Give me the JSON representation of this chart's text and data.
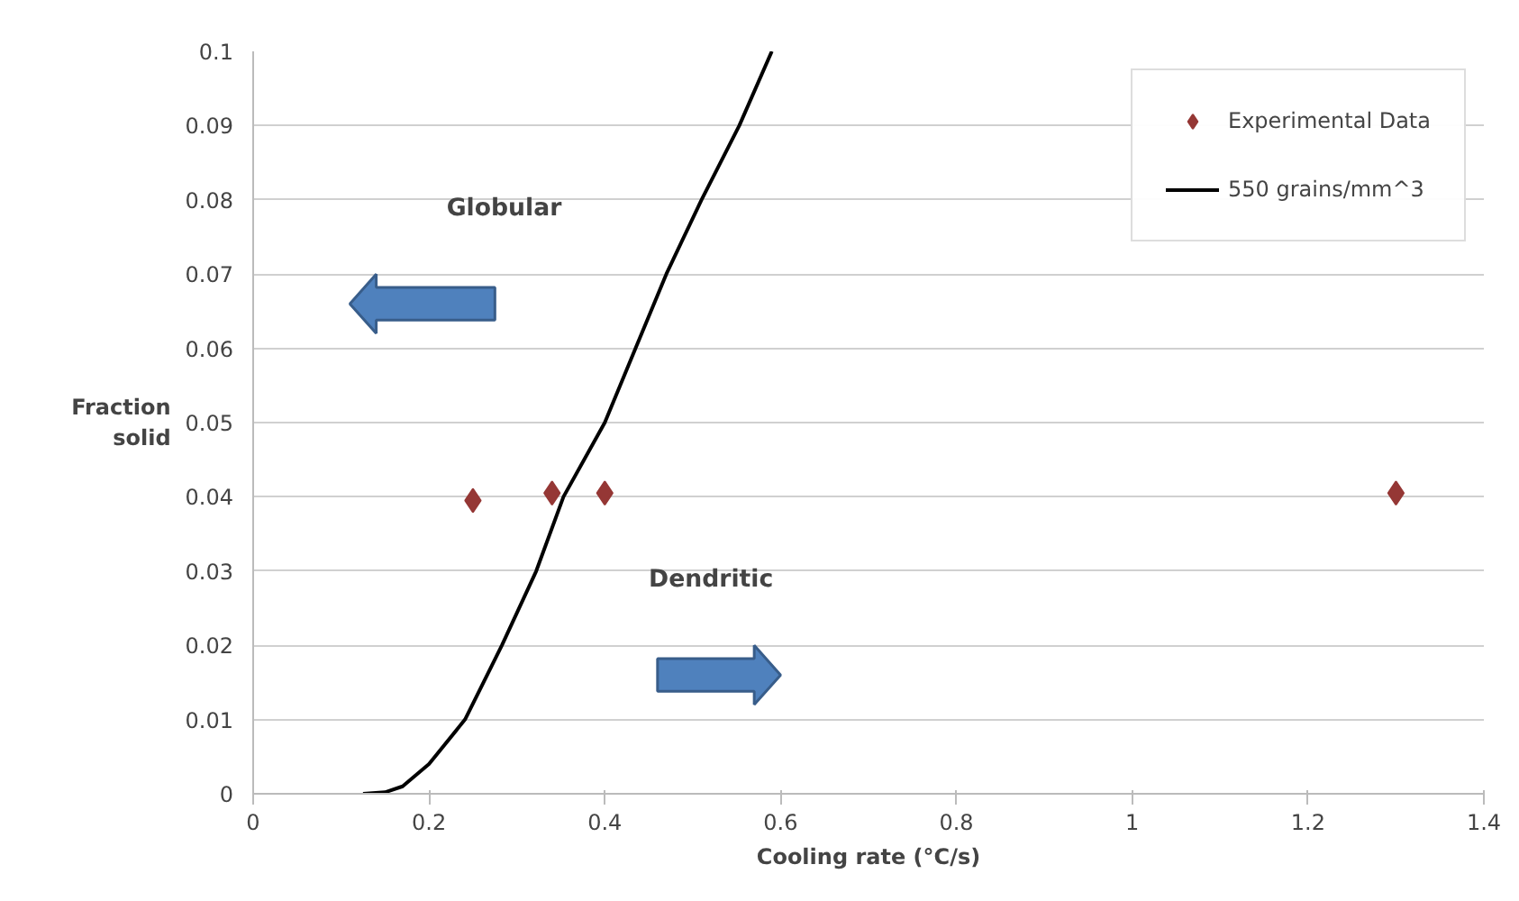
{
  "chart_data": {
    "type": "scatter",
    "xlabel": "Cooling rate (°C/s)",
    "ylabel": "Fraction\nsolid",
    "annotations": [
      "Globular",
      "Dendritic"
    ],
    "xlim": [
      0,
      1.4
    ],
    "xticks": [
      0,
      0.2,
      0.4,
      0.6,
      0.8,
      1,
      1.2,
      1.4
    ],
    "ylim": [
      0,
      0.1
    ],
    "yticks": [
      0,
      0.01,
      0.02,
      0.03,
      0.04,
      0.05,
      0.06,
      0.07,
      0.08,
      0.09,
      0.1
    ],
    "grid": "y",
    "legend": "top right",
    "series": [
      {
        "name": "Experimental Data",
        "marker": "diamond",
        "color": "#953735",
        "x": [
          0.25,
          0.34,
          0.4,
          1.3
        ],
        "values": [
          0.0395,
          0.0405,
          0.0405,
          0.0405
        ]
      },
      {
        "name": "550 grains/mm^3",
        "type": "line",
        "line_style": "solid",
        "color": "#000000",
        "x": [
          0.125,
          0.15,
          0.17,
          0.2,
          0.241,
          0.283,
          0.322,
          0.353,
          0.4,
          0.435,
          0.47,
          0.51,
          0.553,
          0.59
        ],
        "values": [
          0,
          0.0002,
          0.001,
          0.004,
          0.01,
          0.02,
          0.03,
          0.04,
          0.05,
          0.06,
          0.07,
          0.08,
          0.09,
          0.1
        ]
      }
    ]
  }
}
